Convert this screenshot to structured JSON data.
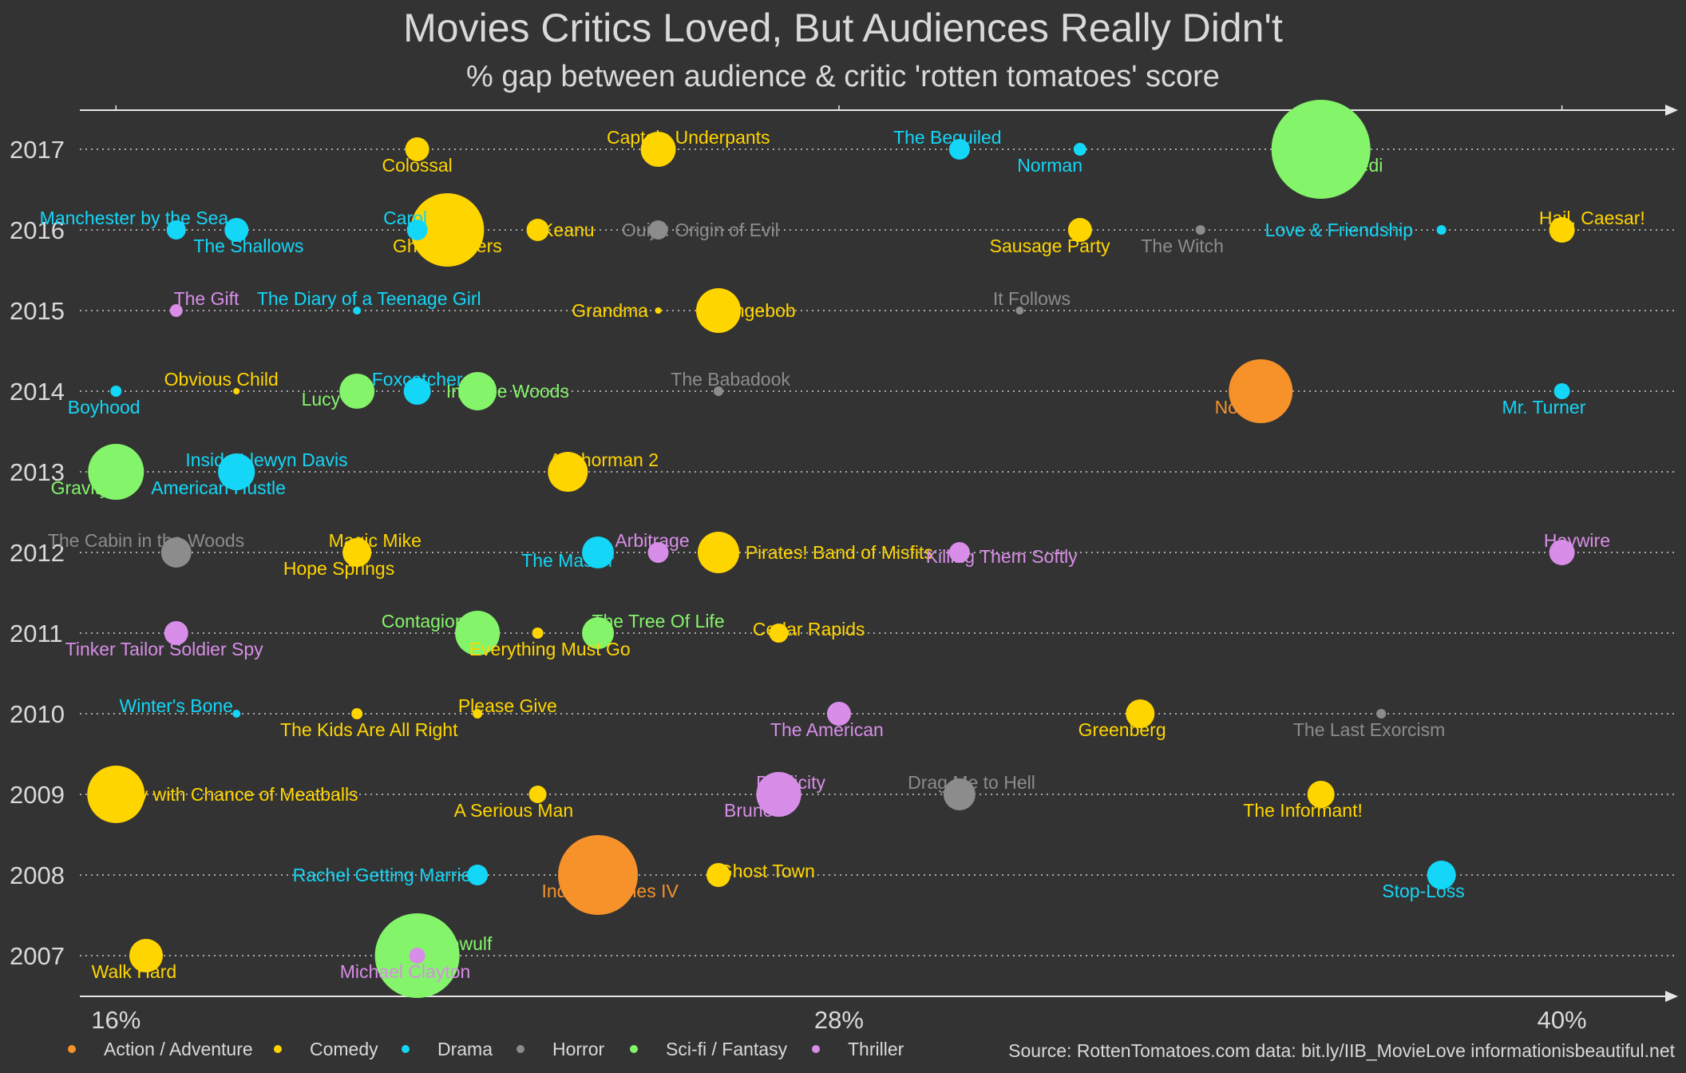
{
  "chart_data": {
    "type": "scatter",
    "title": "Movies Critics Loved, But Audiences Really Didn't",
    "subtitle": "% gap between audience & critic 'rotten tomatoes' score",
    "x_ticks": [
      "16%",
      "28%",
      "40%"
    ],
    "xlim": [
      15.4,
      41.9
    ],
    "y_ticks": [
      "2017",
      "2016",
      "2015",
      "2014",
      "2013",
      "2012",
      "2011",
      "2010",
      "2009",
      "2008",
      "2007"
    ],
    "source": "Source: RottenTomatoes.com  data: bit.ly/IIB_MovieLove  informationisbeautiful.net",
    "colors": {
      "Action / Adventure": "#f7922a",
      "Comedy": "#ffd500",
      "Drama": "#14d6f7",
      "Horror": "#8c8c8c",
      "Sci-fi / Fantasy": "#84f56a",
      "Thriller": "#d88ee8"
    },
    "legend": [
      {
        "label": "Action / Adventure",
        "genre": "Action / Adventure"
      },
      {
        "label": "Comedy",
        "genre": "Comedy"
      },
      {
        "label": "Drama",
        "genre": "Drama"
      },
      {
        "label": "Horror",
        "genre": "Horror"
      },
      {
        "label": "Sci-fi / Fantasy",
        "genre": "Sci-fi / Fantasy"
      },
      {
        "label": "Thriller",
        "genre": "Thriller"
      }
    ],
    "points": [
      {
        "label": "Colossal",
        "year": 2017,
        "gap": 21.0,
        "genre": "Comedy",
        "size": 15,
        "lx": 21.0,
        "ly": 2016.8,
        "anchor": "middle"
      },
      {
        "label": "Captain Underpants",
        "year": 2017,
        "gap": 25.0,
        "genre": "Comedy",
        "size": 22,
        "lx": 25.5,
        "ly": 2017.15,
        "anchor": "middle"
      },
      {
        "label": "The Beguiled",
        "year": 2017,
        "gap": 30.0,
        "genre": "Drama",
        "size": 13,
        "lx": 29.8,
        "ly": 2017.15,
        "anchor": "middle"
      },
      {
        "label": "Norman",
        "year": 2017,
        "gap": 32.0,
        "genre": "Drama",
        "size": 8,
        "lx": 31.5,
        "ly": 2016.8,
        "anchor": "middle"
      },
      {
        "label": "The Last Jedi",
        "year": 2017,
        "gap": 36.0,
        "genre": "Sci-fi / Fantasy",
        "size": 62,
        "lx": 35.2,
        "ly": 2016.8,
        "anchor": "start"
      },
      {
        "label": "Manchester by the Sea",
        "year": 2016,
        "gap": 17.0,
        "genre": "Drama",
        "size": 12,
        "lx": 16.3,
        "ly": 2016.15,
        "anchor": "middle"
      },
      {
        "label": "The Shallows",
        "year": 2016,
        "gap": 18.0,
        "genre": "Drama",
        "size": 15,
        "lx": 18.2,
        "ly": 2015.8,
        "anchor": "middle"
      },
      {
        "label": "Carol",
        "year": 2016,
        "gap": 21.0,
        "genre": "Drama",
        "size": 13,
        "lx": 20.8,
        "ly": 2016.15,
        "anchor": "middle"
      },
      {
        "label": "Ghostbusters",
        "year": 2016,
        "gap": 21.5,
        "genre": "Comedy",
        "size": 46,
        "lx": 21.5,
        "ly": 2015.8,
        "anchor": "middle"
      },
      {
        "label": "Keanu",
        "year": 2016,
        "gap": 23.0,
        "genre": "Comedy",
        "size": 14,
        "lx": 23.5,
        "ly": 2016.0,
        "anchor": "middle"
      },
      {
        "label": "Ouija: Origin of Evil",
        "year": 2016,
        "gap": 25.0,
        "genre": "Horror",
        "size": 12,
        "lx": 25.7,
        "ly": 2016.0,
        "anchor": "middle"
      },
      {
        "label": "Sausage Party",
        "year": 2016,
        "gap": 32.0,
        "genre": "Comedy",
        "size": 15,
        "lx": 31.5,
        "ly": 2015.8,
        "anchor": "middle"
      },
      {
        "label": "The Witch",
        "year": 2016,
        "gap": 34.0,
        "genre": "Horror",
        "size": 6,
        "lx": 33.7,
        "ly": 2015.8,
        "anchor": "middle"
      },
      {
        "label": "Love & Friendship",
        "year": 2016,
        "gap": 38.0,
        "genre": "Drama",
        "size": 6,
        "lx": 36.3,
        "ly": 2016.0,
        "anchor": "middle"
      },
      {
        "label": "Hail, Caesar!",
        "year": 2016,
        "gap": 40.0,
        "genre": "Comedy",
        "size": 16,
        "lx": 40.5,
        "ly": 2016.15,
        "anchor": "middle"
      },
      {
        "label": "The Gift",
        "year": 2015,
        "gap": 17.0,
        "genre": "Thriller",
        "size": 8,
        "lx": 17.5,
        "ly": 2015.15,
        "anchor": "middle"
      },
      {
        "label": "The Diary of a Teenage Girl",
        "year": 2015,
        "gap": 20.0,
        "genre": "Drama",
        "size": 5,
        "lx": 20.2,
        "ly": 2015.15,
        "anchor": "middle"
      },
      {
        "label": "Grandma",
        "year": 2015,
        "gap": 25.0,
        "genre": "Comedy",
        "size": 4,
        "lx": 24.2,
        "ly": 2015.0,
        "anchor": "middle"
      },
      {
        "label": "Spongebob",
        "year": 2015,
        "gap": 26.0,
        "genre": "Comedy",
        "size": 28,
        "lx": 26.5,
        "ly": 2015.0,
        "anchor": "middle"
      },
      {
        "label": "It Follows",
        "year": 2015,
        "gap": 31.0,
        "genre": "Horror",
        "size": 5,
        "lx": 31.2,
        "ly": 2015.15,
        "anchor": "middle"
      },
      {
        "label": "Boyhood",
        "year": 2014,
        "gap": 16.0,
        "genre": "Drama",
        "size": 7,
        "lx": 15.8,
        "ly": 2013.8,
        "anchor": "middle"
      },
      {
        "label": "Obvious Child",
        "year": 2014,
        "gap": 18.0,
        "genre": "Comedy",
        "size": 4,
        "lx": 16.8,
        "ly": 2014.15,
        "anchor": "start"
      },
      {
        "label": "Lucy",
        "year": 2014,
        "gap": 20.0,
        "genre": "Sci-fi / Fantasy",
        "size": 22,
        "lx": 19.4,
        "ly": 2013.9,
        "anchor": "middle"
      },
      {
        "label": "Foxcatcher",
        "year": 2014,
        "gap": 21.0,
        "genre": "Drama",
        "size": 17,
        "lx": 21.0,
        "ly": 2014.15,
        "anchor": "middle"
      },
      {
        "label": "Into the Woods",
        "year": 2014,
        "gap": 22.0,
        "genre": "Sci-fi / Fantasy",
        "size": 24,
        "lx": 22.5,
        "ly": 2014.0,
        "anchor": "middle"
      },
      {
        "label": "The Babadook",
        "year": 2014,
        "gap": 26.0,
        "genre": "Horror",
        "size": 6,
        "lx": 26.2,
        "ly": 2014.15,
        "anchor": "middle"
      },
      {
        "label": "Noah",
        "year": 2014,
        "gap": 35.0,
        "genre": "Action / Adventure",
        "size": 40,
        "lx": 34.6,
        "ly": 2013.8,
        "anchor": "middle"
      },
      {
        "label": "Mr. Turner",
        "year": 2014,
        "gap": 40.0,
        "genre": "Drama",
        "size": 10,
        "lx": 39.7,
        "ly": 2013.8,
        "anchor": "middle"
      },
      {
        "label": "Gravity",
        "year": 2013,
        "gap": 16.0,
        "genre": "Sci-fi / Fantasy",
        "size": 35,
        "lx": 15.4,
        "ly": 2012.8,
        "anchor": "middle"
      },
      {
        "label": "Inside Llewyn Davis",
        "year": 2013,
        "gap": 18.0,
        "genre": "Drama",
        "size": 23,
        "lx": 18.5,
        "ly": 2013.15,
        "anchor": "middle"
      },
      {
        "label": "American Hustle",
        "year": 2013,
        "gap": 18.0,
        "genre": "Drama",
        "size": 23,
        "lx": 17.7,
        "ly": 2012.8,
        "anchor": "middle"
      },
      {
        "label": "Anchorman 2",
        "year": 2013,
        "gap": 23.5,
        "genre": "Comedy",
        "size": 25,
        "lx": 24.1,
        "ly": 2013.15,
        "anchor": "middle"
      },
      {
        "label": "The Cabin in the Woods",
        "year": 2012,
        "gap": 17.0,
        "genre": "Horror",
        "size": 19,
        "lx": 16.5,
        "ly": 2012.15,
        "anchor": "middle"
      },
      {
        "label": "Magic Mike",
        "year": 2012,
        "gap": 20.0,
        "genre": "Comedy",
        "size": 18,
        "lx": 20.3,
        "ly": 2012.15,
        "anchor": "middle"
      },
      {
        "label": "Hope Springs",
        "year": 2012,
        "gap": 20.0,
        "genre": "Comedy",
        "size": 18,
        "lx": 19.7,
        "ly": 2011.8,
        "anchor": "middle"
      },
      {
        "label": "The Master",
        "year": 2012,
        "gap": 24.0,
        "genre": "Drama",
        "size": 20,
        "lx": 23.5,
        "ly": 2011.9,
        "anchor": "middle"
      },
      {
        "label": "Arbitrage",
        "year": 2012,
        "gap": 25.0,
        "genre": "Thriller",
        "size": 13,
        "lx": 24.9,
        "ly": 2012.15,
        "anchor": "middle"
      },
      {
        "label": "The Pirates! Band of Misfits",
        "year": 2012,
        "gap": 26.0,
        "genre": "Comedy",
        "size": 26,
        "lx": 27.7,
        "ly": 2012.0,
        "anchor": "middle"
      },
      {
        "label": "Killing Them Softly",
        "year": 2012,
        "gap": 30.0,
        "genre": "Thriller",
        "size": 13,
        "lx": 30.7,
        "ly": 2011.95,
        "anchor": "middle"
      },
      {
        "label": "Haywire",
        "year": 2012,
        "gap": 40.0,
        "genre": "Thriller",
        "size": 16,
        "lx": 40.25,
        "ly": 2012.15,
        "anchor": "middle"
      },
      {
        "label": "Tinker Tailor Soldier Spy",
        "year": 2011,
        "gap": 17.0,
        "genre": "Thriller",
        "size": 15,
        "lx": 16.8,
        "ly": 2010.8,
        "anchor": "middle"
      },
      {
        "label": "Contagion",
        "year": 2011,
        "gap": 22.0,
        "genre": "Sci-fi / Fantasy",
        "size": 28,
        "lx": 21.1,
        "ly": 2011.15,
        "anchor": "middle"
      },
      {
        "label": "Everything Must Go",
        "year": 2011,
        "gap": 23.0,
        "genre": "Comedy",
        "size": 7,
        "lx": 23.2,
        "ly": 2010.8,
        "anchor": "middle"
      },
      {
        "label": "The Tree Of Life",
        "year": 2011,
        "gap": 24.0,
        "genre": "Sci-fi / Fantasy",
        "size": 20,
        "lx": 25.0,
        "ly": 2011.15,
        "anchor": "middle"
      },
      {
        "label": "Cedar Rapids",
        "year": 2011,
        "gap": 27.0,
        "genre": "Comedy",
        "size": 12,
        "lx": 27.5,
        "ly": 2011.05,
        "anchor": "middle"
      },
      {
        "label": "Winter's Bone",
        "year": 2010,
        "gap": 18.0,
        "genre": "Drama",
        "size": 5,
        "lx": 17.0,
        "ly": 2010.1,
        "anchor": "middle"
      },
      {
        "label": "The Kids Are All Right",
        "year": 2010,
        "gap": 20.0,
        "genre": "Comedy",
        "size": 7,
        "lx": 20.2,
        "ly": 2009.8,
        "anchor": "middle"
      },
      {
        "label": "Please Give",
        "year": 2010,
        "gap": 22.0,
        "genre": "Comedy",
        "size": 6,
        "lx": 22.5,
        "ly": 2010.1,
        "anchor": "middle"
      },
      {
        "label": "The American",
        "year": 2010,
        "gap": 28.0,
        "genre": "Thriller",
        "size": 15,
        "lx": 27.8,
        "ly": 2009.8,
        "anchor": "middle"
      },
      {
        "label": "Greenberg",
        "year": 2010,
        "gap": 33.0,
        "genre": "Comedy",
        "size": 18,
        "lx": 32.7,
        "ly": 2009.8,
        "anchor": "middle"
      },
      {
        "label": "The Last Exorcism",
        "year": 2010,
        "gap": 37.0,
        "genre": "Horror",
        "size": 6,
        "lx": 36.8,
        "ly": 2009.8,
        "anchor": "middle"
      },
      {
        "label": "Cloudy with Chance of Meatballs",
        "year": 2009,
        "gap": 16.0,
        "genre": "Comedy",
        "size": 36,
        "lx": 17.8,
        "ly": 2009.0,
        "anchor": "middle"
      },
      {
        "label": "A Serious Man",
        "year": 2009,
        "gap": 23.0,
        "genre": "Comedy",
        "size": 11,
        "lx": 22.6,
        "ly": 2008.8,
        "anchor": "middle"
      },
      {
        "label": "Duplicity",
        "year": 2009,
        "gap": 27.0,
        "genre": "Thriller",
        "size": 28,
        "lx": 27.2,
        "ly": 2009.15,
        "anchor": "middle"
      },
      {
        "label": "Bruno",
        "year": 2009,
        "gap": 27.0,
        "genre": "Thriller",
        "size": 28,
        "lx": 26.5,
        "ly": 2008.8,
        "anchor": "middle"
      },
      {
        "label": "Drag Me to Hell",
        "year": 2009,
        "gap": 30.0,
        "genre": "Horror",
        "size": 20,
        "lx": 30.2,
        "ly": 2009.15,
        "anchor": "middle"
      },
      {
        "label": "The Informant!",
        "year": 2009,
        "gap": 36.0,
        "genre": "Comedy",
        "size": 17,
        "lx": 35.7,
        "ly": 2008.8,
        "anchor": "middle"
      },
      {
        "label": "Rachel Getting Married",
        "year": 2008,
        "gap": 22.0,
        "genre": "Drama",
        "size": 13,
        "lx": 20.5,
        "ly": 2008.0,
        "anchor": "middle"
      },
      {
        "label": "Indiana Jones IV",
        "year": 2008,
        "gap": 24.0,
        "genre": "Action / Adventure",
        "size": 50,
        "lx": 24.2,
        "ly": 2007.8,
        "anchor": "middle"
      },
      {
        "label": "Ghost Town",
        "year": 2008,
        "gap": 26.0,
        "genre": "Comedy",
        "size": 15,
        "lx": 26.8,
        "ly": 2008.05,
        "anchor": "middle"
      },
      {
        "label": "Stop-Loss",
        "year": 2008,
        "gap": 38.0,
        "genre": "Drama",
        "size": 18,
        "lx": 37.7,
        "ly": 2007.8,
        "anchor": "middle"
      },
      {
        "label": "Walk Hard",
        "year": 2007,
        "gap": 16.5,
        "genre": "Comedy",
        "size": 21,
        "lx": 16.3,
        "ly": 2006.8,
        "anchor": "middle"
      },
      {
        "label": "Beowulf",
        "year": 2007,
        "gap": 21.0,
        "genre": "Sci-fi / Fantasy",
        "size": 53,
        "lx": 21.7,
        "ly": 2007.15,
        "anchor": "middle"
      },
      {
        "label": "Michael Clayton",
        "year": 2007,
        "gap": 21.0,
        "genre": "Thriller",
        "size": 10,
        "lx": 20.8,
        "ly": 2006.8,
        "anchor": "middle"
      }
    ]
  }
}
